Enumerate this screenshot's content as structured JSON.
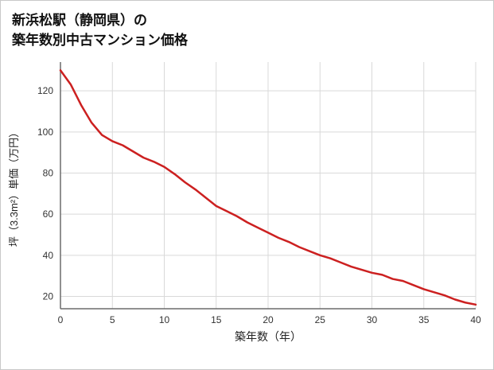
{
  "title": {
    "line1": "新浜松駅（静岡県）の",
    "line2": "築年数別中古マンション価格"
  },
  "chart_data": {
    "type": "line",
    "title": "新浜松駅（静岡県）の築年数別中古マンション価格",
    "xlabel": "築年数（年）",
    "ylabel": "坪（3.3m²）単価（万円）",
    "x": [
      0,
      1,
      2,
      3,
      4,
      5,
      6,
      7,
      8,
      9,
      10,
      11,
      12,
      13,
      14,
      15,
      16,
      17,
      18,
      19,
      20,
      21,
      22,
      23,
      24,
      25,
      26,
      27,
      28,
      29,
      30,
      31,
      32,
      33,
      34,
      35,
      36,
      37,
      38,
      39,
      40
    ],
    "values": [
      130,
      123,
      113,
      104.5,
      98.5,
      95.5,
      93.5,
      90.5,
      87.5,
      85.5,
      83,
      79.5,
      75.5,
      72,
      68,
      64,
      61.5,
      59,
      56,
      53.5,
      51,
      48.5,
      46.5,
      44,
      42,
      40,
      38.5,
      36.5,
      34.5,
      33,
      31.5,
      30.5,
      28.5,
      27.5,
      25.5,
      23.5,
      22,
      20.5,
      18.5,
      17,
      16
    ],
    "x_ticks": [
      0,
      5,
      10,
      15,
      20,
      25,
      30,
      35,
      40
    ],
    "y_ticks": [
      20,
      40,
      60,
      80,
      100,
      120
    ],
    "xlim": [
      0,
      40
    ],
    "ylim": [
      14,
      134
    ],
    "grid": true,
    "legend": "none",
    "line_color": "#cc2020",
    "grid_color": "#d9d9d9",
    "axis_color": "#6b6b6b",
    "tick_color": "#333333",
    "label_color": "#222222"
  }
}
